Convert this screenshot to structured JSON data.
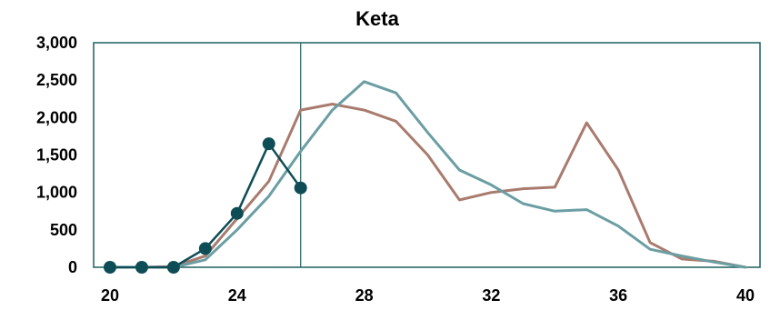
{
  "chart_data": {
    "type": "line",
    "title": "Keta",
    "xlabel": "",
    "ylabel": "",
    "xlim": [
      20,
      40
    ],
    "ylim": [
      0,
      3000
    ],
    "x_ticks": [
      "20",
      "24",
      "28",
      "32",
      "36",
      "40"
    ],
    "y_ticks": [
      "0",
      "500",
      "1,000",
      "1,500",
      "2,000",
      "2,500",
      "3,000"
    ],
    "grid": false,
    "legend": "none",
    "vertical_marker_x": 26,
    "series": [
      {
        "color": "#A97B6E",
        "markers": false,
        "x": [
          20,
          21,
          22,
          23,
          24,
          25,
          26,
          27,
          28,
          29,
          30,
          31,
          32,
          33,
          34,
          35,
          36,
          37,
          38,
          39,
          40
        ],
        "y": [
          0,
          0,
          10,
          150,
          650,
          1150,
          2100,
          2180,
          2100,
          1950,
          1500,
          900,
          1000,
          1050,
          1070,
          1930,
          1300,
          330,
          110,
          80,
          0
        ]
      },
      {
        "color": "#6B9EA3",
        "markers": false,
        "x": [
          20,
          21,
          22,
          23,
          24,
          25,
          26,
          27,
          28,
          29,
          30,
          31,
          32,
          33,
          34,
          35,
          36,
          37,
          38,
          39,
          40
        ],
        "y": [
          0,
          0,
          0,
          100,
          500,
          950,
          1550,
          2100,
          2480,
          2330,
          1800,
          1300,
          1100,
          850,
          750,
          770,
          550,
          240,
          150,
          70,
          0
        ]
      },
      {
        "color": "#0E4D55",
        "markers": true,
        "x": [
          20,
          21,
          22,
          23,
          24,
          25,
          26
        ],
        "y": [
          0,
          0,
          0,
          250,
          720,
          1650,
          1060
        ]
      }
    ]
  }
}
